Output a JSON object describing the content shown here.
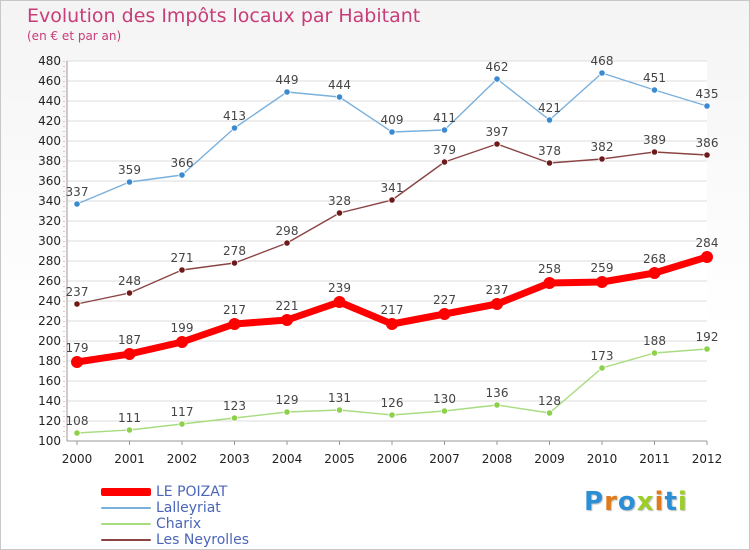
{
  "header": {
    "title": "Evolution des Impôts locaux par Habitant",
    "subtitle": "(en € et par an)"
  },
  "logo": {
    "letters": [
      {
        "char": "P",
        "color": "#2c8fd6"
      },
      {
        "char": "r",
        "color": "#e07b1c"
      },
      {
        "char": "o",
        "color": "#2c8fd6"
      },
      {
        "char": "x",
        "color": "#9ccd2a"
      },
      {
        "char": "i",
        "color": "#e07b1c"
      },
      {
        "char": "t",
        "color": "#2c8fd6"
      },
      {
        "char": "i",
        "color": "#9ccd2a"
      }
    ]
  },
  "chart_data": {
    "type": "line",
    "title": "Evolution des Impôts locaux par Habitant",
    "subtitle": "(en € et par an)",
    "xlabel": "",
    "ylabel": "",
    "x": [
      "2000",
      "2001",
      "2002",
      "2003",
      "2004",
      "2005",
      "2006",
      "2007",
      "2008",
      "2009",
      "2010",
      "2011",
      "2012"
    ],
    "ylim": [
      100,
      480
    ],
    "yticks": [
      100,
      120,
      140,
      160,
      180,
      200,
      220,
      240,
      260,
      280,
      300,
      320,
      340,
      360,
      380,
      400,
      420,
      440,
      460,
      480
    ],
    "grid": "horizontal",
    "legend_position": "bottom-left",
    "series": [
      {
        "name": "LE POIZAT",
        "color": "#ff0000",
        "marker_fill": "#ff0000",
        "emphasis": "thick",
        "values": [
          179,
          187,
          199,
          217,
          221,
          239,
          217,
          227,
          237,
          258,
          259,
          268,
          284
        ]
      },
      {
        "name": "Lalleyriat",
        "color": "#7ab0dc",
        "marker_fill": "#3a8ad0",
        "emphasis": "thin",
        "values": [
          337,
          359,
          366,
          413,
          449,
          444,
          409,
          411,
          462,
          421,
          468,
          451,
          435
        ]
      },
      {
        "name": "Charix",
        "color": "#a8dc80",
        "marker_fill": "#8cd04c",
        "emphasis": "thin",
        "values": [
          108,
          111,
          117,
          123,
          129,
          131,
          126,
          130,
          136,
          128,
          173,
          188,
          192
        ]
      },
      {
        "name": "Les Neyrolles",
        "color": "#8a4444",
        "marker_fill": "#6e1a1a",
        "emphasis": "thin",
        "values": [
          237,
          248,
          271,
          278,
          298,
          328,
          341,
          379,
          397,
          378,
          382,
          389,
          386
        ]
      }
    ]
  }
}
